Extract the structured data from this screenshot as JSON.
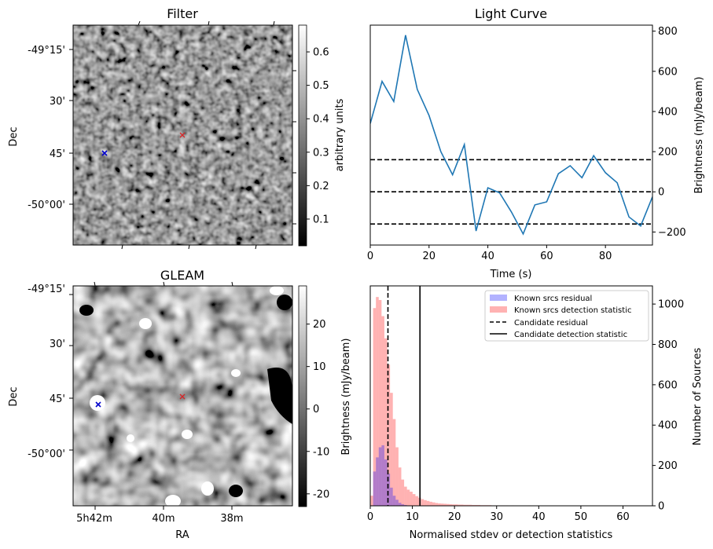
{
  "chart_data": [
    {
      "id": "filter",
      "type": "image",
      "title": "Filter",
      "ylabel": "Dec",
      "yticks": [
        "-49°15'",
        "30'",
        "45'",
        "-50°00'"
      ],
      "colorbar": {
        "label": "arbitrary units",
        "range": [
          0.02,
          0.68
        ],
        "ticks": [
          0.1,
          0.2,
          0.3,
          0.4,
          0.5,
          0.6
        ]
      },
      "markers": [
        {
          "name": "candidate",
          "color": "#d62728",
          "symbol": "x"
        },
        {
          "name": "known",
          "color": "#0000cc",
          "symbol": "x"
        }
      ]
    },
    {
      "id": "gleam",
      "type": "image",
      "title": "GLEAM",
      "xlabel": "RA",
      "ylabel": "Dec",
      "xticks": [
        "5h42m",
        "40m",
        "38m"
      ],
      "yticks": [
        "-49°15'",
        "30'",
        "45'",
        "-50°00'"
      ],
      "colorbar": {
        "label": "Brightness (mJy/beam)",
        "range": [
          -23,
          29
        ],
        "ticks": [
          -20,
          -10,
          0,
          10,
          20
        ]
      },
      "markers": [
        {
          "name": "candidate",
          "color": "#d62728",
          "symbol": "x"
        },
        {
          "name": "known",
          "color": "#0000cc",
          "symbol": "x"
        }
      ]
    },
    {
      "id": "lightcurve",
      "type": "line",
      "title": "Light Curve",
      "xlabel": "Time (s)",
      "ylabel": "Brightness (mJy/beam)",
      "xlim": [
        0,
        96
      ],
      "ylim": [
        -265,
        830
      ],
      "xticks": [
        0,
        20,
        40,
        60,
        80
      ],
      "yticks": [
        -200,
        0,
        200,
        400,
        600,
        800
      ],
      "x": [
        0,
        4,
        8,
        12,
        16,
        20,
        24,
        28,
        32,
        36,
        40,
        44,
        48,
        52,
        56,
        60,
        64,
        68,
        72,
        76,
        80,
        84,
        88,
        92,
        96
      ],
      "y": [
        340,
        550,
        450,
        780,
        510,
        380,
        200,
        85,
        235,
        -195,
        20,
        -5,
        -100,
        -210,
        -65,
        -50,
        90,
        130,
        70,
        180,
        95,
        45,
        -125,
        -170,
        -25
      ],
      "hlines": [
        160,
        0,
        -160
      ],
      "color": "#1f77b4"
    },
    {
      "id": "histogram",
      "type": "histogram",
      "xlabel": "Normalised stdev or detection statistics",
      "ylabel": "Number of Sources",
      "xlim": [
        0,
        67
      ],
      "ylim": [
        0,
        1090
      ],
      "xticks": [
        0,
        10,
        20,
        30,
        40,
        50,
        60
      ],
      "yticks": [
        0,
        200,
        400,
        600,
        800,
        1000
      ],
      "bin_width": 0.67,
      "series": [
        {
          "name": "Known srcs residual",
          "color": "#0000ff",
          "alpha": 0.3,
          "values": [
            0,
            170,
            240,
            290,
            300,
            230,
            160,
            90,
            50,
            30,
            15,
            8,
            4,
            2,
            1
          ]
        },
        {
          "name": "Known srcs detection statistic",
          "color": "#ff0000",
          "alpha": 0.3,
          "values": [
            50,
            980,
            1035,
            1020,
            940,
            830,
            700,
            560,
            430,
            290,
            190,
            130,
            95,
            80,
            70,
            58,
            48,
            40,
            33,
            28,
            24,
            20,
            17,
            14,
            12,
            11,
            10,
            9,
            8,
            7,
            7,
            6,
            6,
            5,
            5,
            5,
            4,
            4,
            4,
            3,
            3,
            3,
            3,
            2,
            2,
            2,
            2,
            2,
            2,
            1,
            2,
            1,
            1,
            1,
            1,
            1,
            2,
            1,
            1,
            1,
            1,
            1,
            0,
            0,
            1,
            0,
            1,
            0,
            0,
            1,
            0,
            0,
            0,
            1
          ]
        }
      ],
      "vlines": [
        {
          "name": "Candidate residual",
          "x": 4.2,
          "style": "dashed"
        },
        {
          "name": "Candidate detection statistic",
          "x": 11.8,
          "style": "solid"
        }
      ],
      "legend_position": "top-right"
    }
  ]
}
